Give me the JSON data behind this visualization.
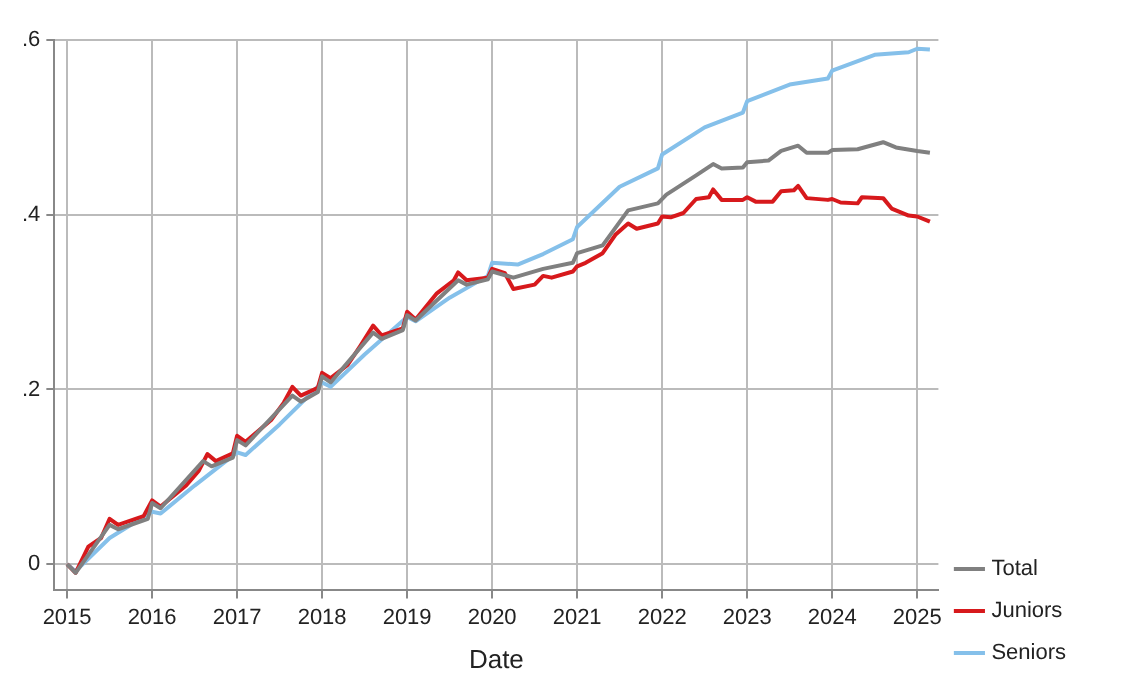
{
  "chart_data": {
    "type": "line",
    "xlabel": "Date",
    "xlim": [
      2014.85,
      2025.25
    ],
    "ylim": [
      -0.03,
      0.6
    ],
    "xticks": [
      2015,
      2016,
      2017,
      2018,
      2019,
      2020,
      2021,
      2022,
      2023,
      2024,
      2025
    ],
    "yticks": [
      {
        "value": 0,
        "label": "0"
      },
      {
        "value": 0.2,
        "label": ".2"
      },
      {
        "value": 0.4,
        "label": ".4"
      },
      {
        "value": 0.6,
        "label": ".6"
      }
    ],
    "grid": true,
    "legend": "right",
    "marker": "none",
    "line_style": "solid",
    "series": [
      {
        "name": "Total",
        "color": "#808080",
        "x": [
          2015,
          2015.1,
          2015.5,
          2015.6,
          2015.95,
          2016,
          2016.1,
          2016.6,
          2016.7,
          2016.95,
          2017,
          2017.1,
          2017.65,
          2017.75,
          2017.95,
          2018,
          2018.1,
          2018.6,
          2018.7,
          2018.95,
          2019,
          2019.1,
          2019.6,
          2019.7,
          2019.95,
          2020,
          2020.25,
          2020.6,
          2020.95,
          2021,
          2021.3,
          2021.6,
          2021.95,
          2022.05,
          2022.4,
          2022.6,
          2022.7,
          2022.95,
          2023,
          2023.25,
          2023.4,
          2023.6,
          2023.7,
          2023.95,
          2024,
          2024.3,
          2024.6,
          2024.75,
          2025,
          2025.15
        ],
        "values": [
          0,
          -0.01,
          0.045,
          0.04,
          0.052,
          0.07,
          0.064,
          0.118,
          0.112,
          0.122,
          0.142,
          0.136,
          0.193,
          0.186,
          0.197,
          0.215,
          0.208,
          0.265,
          0.258,
          0.268,
          0.285,
          0.279,
          0.325,
          0.32,
          0.326,
          0.335,
          0.328,
          0.338,
          0.345,
          0.356,
          0.365,
          0.405,
          0.413,
          0.423,
          0.445,
          0.458,
          0.453,
          0.454,
          0.46,
          0.462,
          0.473,
          0.479,
          0.471,
          0.471,
          0.474,
          0.475,
          0.483,
          0.477,
          0.473,
          0.471
        ]
      },
      {
        "name": "Juniors",
        "color": "#d7191c",
        "x": [
          2015,
          2015.1,
          2015.25,
          2015.4,
          2015.5,
          2015.6,
          2015.9,
          2016,
          2016.1,
          2016.4,
          2016.55,
          2016.65,
          2016.75,
          2016.95,
          2017,
          2017.1,
          2017.4,
          2017.55,
          2017.65,
          2017.75,
          2017.95,
          2018,
          2018.1,
          2018.3,
          2018.45,
          2018.6,
          2018.7,
          2018.95,
          2019,
          2019.1,
          2019.35,
          2019.55,
          2019.6,
          2019.7,
          2019.95,
          2020,
          2020.15,
          2020.25,
          2020.5,
          2020.6,
          2020.7,
          2020.95,
          2021,
          2021.1,
          2021.3,
          2021.45,
          2021.6,
          2021.7,
          2021.95,
          2022,
          2022.1,
          2022.25,
          2022.4,
          2022.55,
          2022.6,
          2022.7,
          2022.95,
          2023,
          2023.1,
          2023.3,
          2023.4,
          2023.55,
          2023.6,
          2023.7,
          2023.95,
          2024,
          2024.1,
          2024.3,
          2024.35,
          2024.6,
          2024.7,
          2024.9,
          2025,
          2025.15
        ],
        "values": [
          0,
          -0.01,
          0.02,
          0.03,
          0.052,
          0.045,
          0.055,
          0.073,
          0.066,
          0.09,
          0.107,
          0.126,
          0.118,
          0.127,
          0.147,
          0.14,
          0.165,
          0.185,
          0.203,
          0.193,
          0.202,
          0.219,
          0.213,
          0.228,
          0.25,
          0.273,
          0.262,
          0.27,
          0.289,
          0.28,
          0.31,
          0.325,
          0.334,
          0.325,
          0.328,
          0.338,
          0.333,
          0.315,
          0.32,
          0.33,
          0.328,
          0.335,
          0.341,
          0.345,
          0.356,
          0.377,
          0.39,
          0.384,
          0.39,
          0.398,
          0.397,
          0.402,
          0.418,
          0.42,
          0.429,
          0.417,
          0.417,
          0.42,
          0.415,
          0.415,
          0.427,
          0.428,
          0.433,
          0.419,
          0.417,
          0.418,
          0.414,
          0.413,
          0.42,
          0.419,
          0.407,
          0.399,
          0.398,
          0.392
        ]
      },
      {
        "name": "Seniors",
        "color": "#85c0ea",
        "x": [
          2015,
          2015.1,
          2015.5,
          2016,
          2016.1,
          2016.5,
          2017,
          2017.1,
          2017.5,
          2018,
          2018.1,
          2018.5,
          2019,
          2019.1,
          2019.5,
          2019.95,
          2020,
          2020.3,
          2020.6,
          2020.95,
          2021,
          2021.5,
          2021.95,
          2022,
          2022.5,
          2022.95,
          2023,
          2023.5,
          2023.95,
          2024,
          2024.5,
          2024.9,
          2025,
          2025.15
        ],
        "values": [
          0,
          -0.008,
          0.03,
          0.06,
          0.058,
          0.09,
          0.128,
          0.125,
          0.16,
          0.208,
          0.203,
          0.24,
          0.283,
          0.278,
          0.305,
          0.33,
          0.345,
          0.343,
          0.355,
          0.372,
          0.386,
          0.432,
          0.453,
          0.469,
          0.5,
          0.517,
          0.53,
          0.549,
          0.556,
          0.565,
          0.583,
          0.586,
          0.59,
          0.589
        ]
      }
    ]
  }
}
